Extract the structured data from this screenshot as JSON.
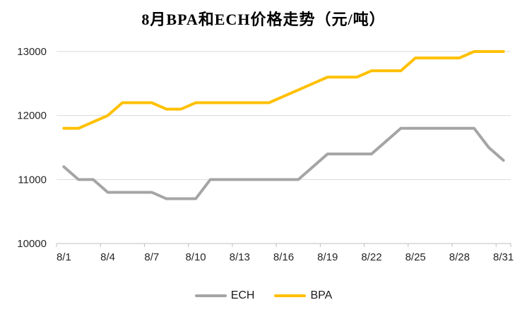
{
  "title": "8月BPA和ECH价格走势（元/吨）",
  "colors": {
    "background": "#FFFFFF",
    "bpa_line": "#FFC000",
    "ech_line": "#A5A5A5",
    "gridline": "#D9D9D9",
    "axis": "#BFBFBF",
    "tick_text": "#262626",
    "title_text": "#000000"
  },
  "legend": {
    "items": [
      {
        "label": "ECH",
        "color": "#A5A5A5"
      },
      {
        "label": "BPA",
        "color": "#FFC000"
      }
    ]
  },
  "chart_data": {
    "type": "line",
    "title": "8月BPA和ECH价格走势（元/吨）",
    "categories": [
      "8/1",
      "8/2",
      "8/3",
      "8/4",
      "8/5",
      "8/6",
      "8/7",
      "8/8",
      "8/9",
      "8/10",
      "8/11",
      "8/12",
      "8/13",
      "8/14",
      "8/15",
      "8/16",
      "8/17",
      "8/18",
      "8/19",
      "8/20",
      "8/21",
      "8/22",
      "8/23",
      "8/24",
      "8/25",
      "8/26",
      "8/27",
      "8/28",
      "8/29",
      "8/30",
      "8/31"
    ],
    "x_tick_labels": [
      "8/1",
      "8/4",
      "8/7",
      "8/10",
      "8/13",
      "8/16",
      "8/19",
      "8/22",
      "8/25",
      "8/28",
      "8/31"
    ],
    "x_label_interval": 3,
    "series": [
      {
        "name": "ECH",
        "color": "#A5A5A5",
        "values": [
          11200,
          11000,
          11000,
          10800,
          10800,
          10800,
          10800,
          10700,
          10700,
          10700,
          11000,
          11000,
          11000,
          11000,
          11000,
          11000,
          11000,
          11200,
          11400,
          11400,
          11400,
          11400,
          11600,
          11800,
          11800,
          11800,
          11800,
          11800,
          11800,
          11500,
          11300
        ]
      },
      {
        "name": "BPA",
        "color": "#FFC000",
        "values": [
          11800,
          11800,
          11900,
          12000,
          12200,
          12200,
          12200,
          12100,
          12100,
          12200,
          12200,
          12200,
          12200,
          12200,
          12200,
          12300,
          12400,
          12500,
          12600,
          12600,
          12600,
          12700,
          12700,
          12700,
          12900,
          12900,
          12900,
          12900,
          13000,
          13000,
          13000
        ]
      }
    ],
    "ylim": [
      10000,
      13000
    ],
    "y_ticks": [
      10000,
      11000,
      12000,
      13000
    ],
    "grid": true,
    "legend_position": "bottom"
  }
}
